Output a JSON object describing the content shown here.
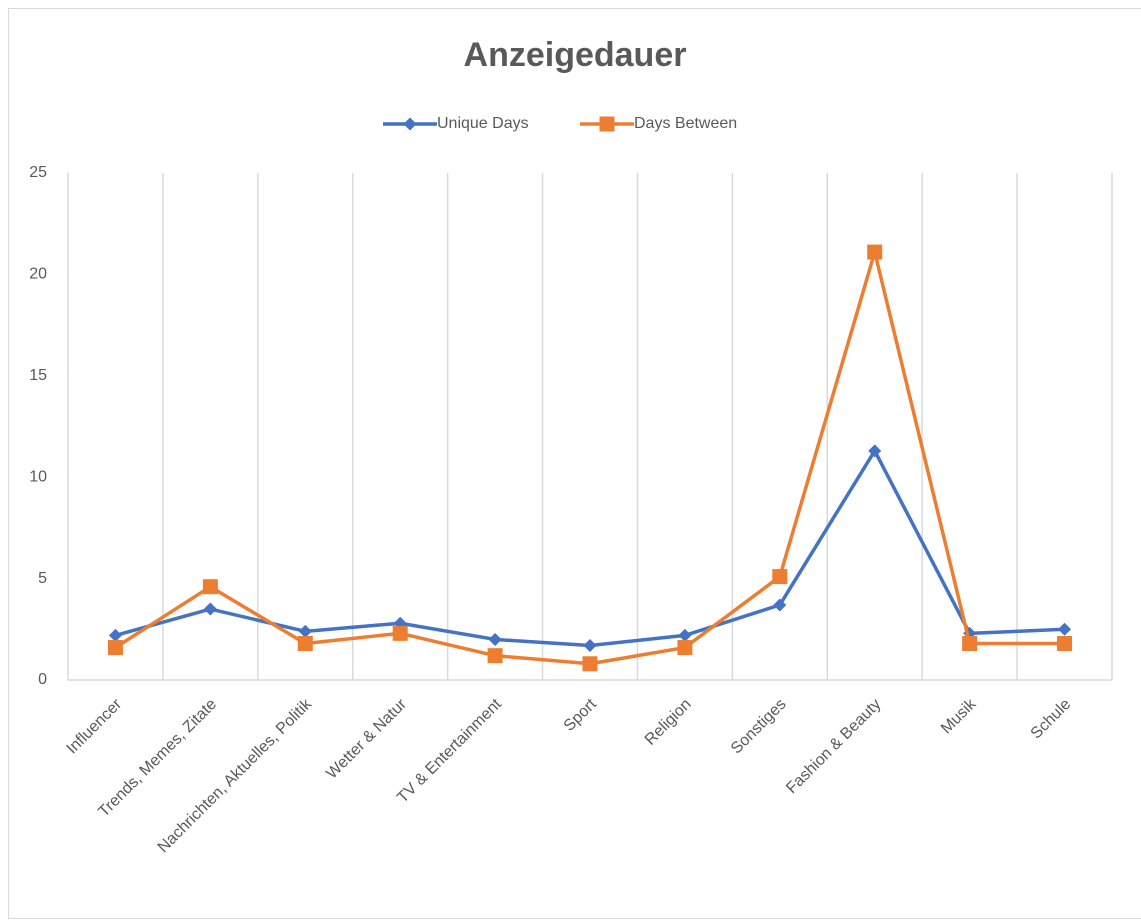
{
  "chart_data": {
    "type": "line",
    "title": "Anzeigedauer",
    "categories": [
      "Influencer",
      "Trends, Memes, Zitate",
      "Nachrichten, Aktuelles, Politik",
      "Wetter & Natur",
      "TV & Entertainment",
      "Sport",
      "Religion",
      "Sonstiges",
      "Fashion & Beauty",
      "Musik",
      "Schule"
    ],
    "series": [
      {
        "name": "Unique Days",
        "color": "#4472c4",
        "marker": "diamond",
        "values": [
          2.2,
          3.5,
          2.4,
          2.8,
          2.0,
          1.7,
          2.2,
          3.7,
          11.3,
          2.3,
          2.5
        ]
      },
      {
        "name": "Days Between",
        "color": "#ed7d31",
        "marker": "square",
        "values": [
          1.6,
          4.6,
          1.8,
          2.3,
          1.2,
          0.8,
          1.6,
          5.1,
          21.1,
          1.8,
          1.8
        ]
      }
    ],
    "ylim": [
      0,
      25
    ],
    "yticks": [
      0,
      5,
      10,
      15,
      20,
      25
    ],
    "grid": "vertical",
    "legend": "top"
  }
}
